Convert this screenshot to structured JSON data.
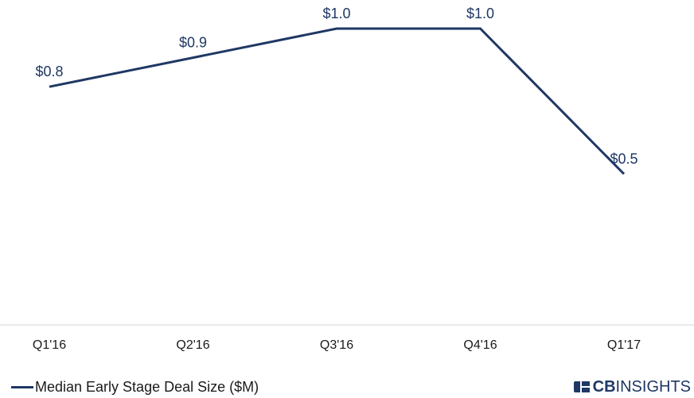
{
  "chart_data": {
    "type": "line",
    "categories": [
      "Q1'16",
      "Q2'16",
      "Q3'16",
      "Q4'16",
      "Q1'17"
    ],
    "series": [
      {
        "name": "Median Early Stage Deal Size ($M)",
        "values": [
          0.8,
          0.9,
          1.0,
          1.0,
          0.5
        ],
        "labels": [
          "$0.8",
          "$0.9",
          "$1.0",
          "$1.0",
          "$0.5"
        ],
        "color": "#1f3864"
      }
    ],
    "title": "",
    "xlabel": "",
    "ylabel": "",
    "ylim": [
      0,
      1.0
    ],
    "grid": false,
    "legend_position": "bottom-left"
  },
  "legend": {
    "label": "Median Early Stage Deal Size ($M)"
  },
  "branding": {
    "logo_text_bold": "CB",
    "logo_text_regular": "INSIGHTS",
    "logo_icon": "cb-insights-logo-icon",
    "color": "#1f3864"
  }
}
